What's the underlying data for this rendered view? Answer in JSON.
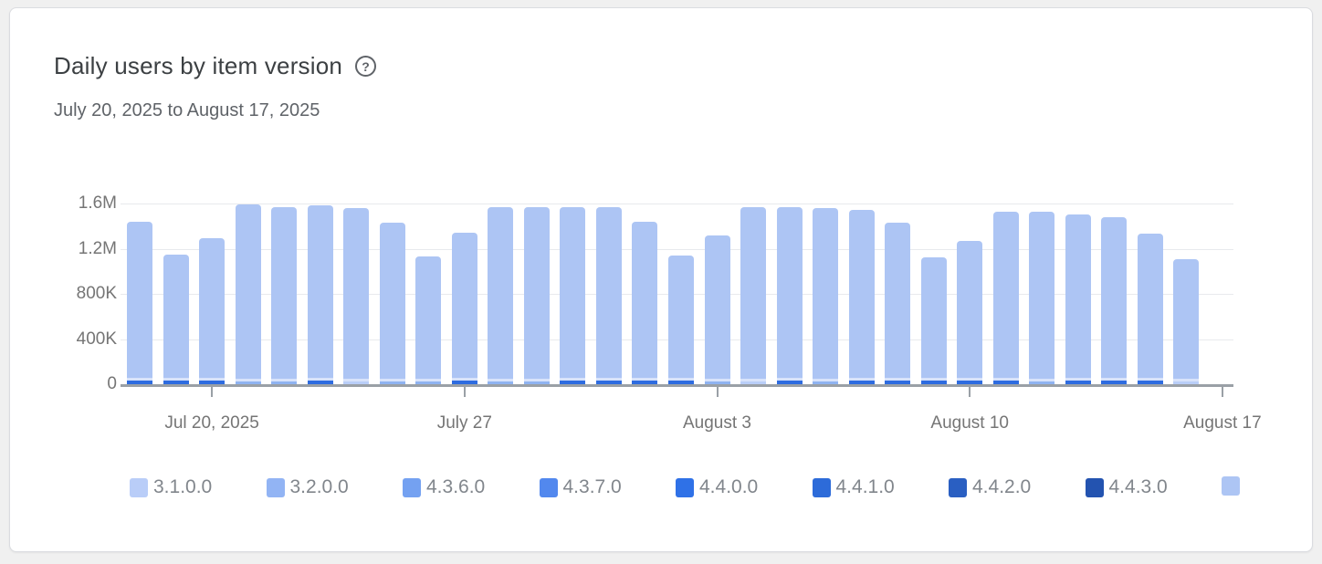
{
  "page": {
    "background_color": "#f0f0f0",
    "card_background": "#ffffff",
    "card_border_color": "#dadce0"
  },
  "header": {
    "title": "Daily users by item version",
    "help_glyph": "?",
    "date_range": "July 20, 2025 to August 17, 2025"
  },
  "colors": {
    "title_text": "#3c4043",
    "subtitle_text": "#5f6368",
    "axis_text": "#757575",
    "gridline": "#e8eaed",
    "axis_line": "#9aa0a6",
    "bar_main": "#adc5f4",
    "bar_pale_strip": "#d8e3fb",
    "bottom_dark": "#2e6ce0",
    "bottom_medium": "#8fb3f1",
    "bottom_pale": "#b9cef8"
  },
  "chart_data": {
    "type": "bar",
    "stacked": true,
    "title": "Daily users by item version",
    "subtitle": "July 20, 2025 to August 17, 2025",
    "ylabel": "",
    "xlabel": "",
    "ylim": [
      0,
      1600000
    ],
    "y_tick_labels": [
      "0",
      "400K",
      "800K",
      "1.2M",
      "1.6M"
    ],
    "grid": true,
    "x_tick_labels": [
      "Jul 20, 2025",
      "July 27",
      "August 3",
      "August 10",
      "August 17"
    ],
    "x_tick_slots": [
      2,
      9,
      16,
      23,
      30
    ],
    "num_slots": 31,
    "note": "Stacked daily-user bars; dominant segment is the light-periwinkle newest version (9th unlabeled legend entry); thin strips of older versions sit at the bottom of each bar. Totals estimated from gridlines.",
    "bars": [
      {
        "date": "Jul 18",
        "total_est": 1440000,
        "bottom_style": "dark",
        "bottom_users_est": 32000
      },
      {
        "date": "Jul 19",
        "total_est": 1150000,
        "bottom_style": "dark",
        "bottom_users_est": 32000
      },
      {
        "date": "Jul 20",
        "total_est": 1290000,
        "bottom_style": "dark",
        "bottom_users_est": 32000
      },
      {
        "date": "Jul 21",
        "total_est": 1590000,
        "bottom_style": "medium",
        "bottom_users_est": 24000
      },
      {
        "date": "Jul 22",
        "total_est": 1570000,
        "bottom_style": "medium",
        "bottom_users_est": 24000
      },
      {
        "date": "Jul 23",
        "total_est": 1580000,
        "bottom_style": "dark",
        "bottom_users_est": 32000
      },
      {
        "date": "Jul 24",
        "total_est": 1560000,
        "bottom_style": "pale",
        "bottom_users_est": 24000
      },
      {
        "date": "Jul 25",
        "total_est": 1430000,
        "bottom_style": "medium",
        "bottom_users_est": 24000
      },
      {
        "date": "Jul 26",
        "total_est": 1130000,
        "bottom_style": "medium",
        "bottom_users_est": 24000
      },
      {
        "date": "Jul 27",
        "total_est": 1340000,
        "bottom_style": "dark",
        "bottom_users_est": 32000
      },
      {
        "date": "Jul 28",
        "total_est": 1570000,
        "bottom_style": "medium",
        "bottom_users_est": 24000
      },
      {
        "date": "Jul 29",
        "total_est": 1570000,
        "bottom_style": "medium",
        "bottom_users_est": 24000
      },
      {
        "date": "Jul 30",
        "total_est": 1570000,
        "bottom_style": "dark",
        "bottom_users_est": 32000
      },
      {
        "date": "Jul 31",
        "total_est": 1570000,
        "bottom_style": "dark",
        "bottom_users_est": 32000
      },
      {
        "date": "Aug 1",
        "total_est": 1440000,
        "bottom_style": "dark",
        "bottom_users_est": 32000
      },
      {
        "date": "Aug 2",
        "total_est": 1140000,
        "bottom_style": "dark",
        "bottom_users_est": 32000
      },
      {
        "date": "Aug 3",
        "total_est": 1320000,
        "bottom_style": "medium",
        "bottom_users_est": 24000
      },
      {
        "date": "Aug 4",
        "total_est": 1570000,
        "bottom_style": "pale",
        "bottom_users_est": 24000
      },
      {
        "date": "Aug 5",
        "total_est": 1570000,
        "bottom_style": "dark",
        "bottom_users_est": 32000
      },
      {
        "date": "Aug 6",
        "total_est": 1560000,
        "bottom_style": "medium",
        "bottom_users_est": 24000
      },
      {
        "date": "Aug 7",
        "total_est": 1540000,
        "bottom_style": "dark",
        "bottom_users_est": 32000
      },
      {
        "date": "Aug 8",
        "total_est": 1430000,
        "bottom_style": "dark",
        "bottom_users_est": 32000
      },
      {
        "date": "Aug 9",
        "total_est": 1120000,
        "bottom_style": "dark",
        "bottom_users_est": 32000
      },
      {
        "date": "Aug 10",
        "total_est": 1270000,
        "bottom_style": "dark",
        "bottom_users_est": 32000
      },
      {
        "date": "Aug 11",
        "total_est": 1530000,
        "bottom_style": "dark",
        "bottom_users_est": 32000
      },
      {
        "date": "Aug 12",
        "total_est": 1530000,
        "bottom_style": "medium",
        "bottom_users_est": 24000
      },
      {
        "date": "Aug 13",
        "total_est": 1500000,
        "bottom_style": "dark",
        "bottom_users_est": 32000
      },
      {
        "date": "Aug 14",
        "total_est": 1480000,
        "bottom_style": "dark",
        "bottom_users_est": 32000
      },
      {
        "date": "Aug 15",
        "total_est": 1330000,
        "bottom_style": "dark",
        "bottom_users_est": 32000
      },
      {
        "date": "Aug 16",
        "total_est": 1110000,
        "bottom_style": "pale",
        "bottom_users_est": 24000
      }
    ],
    "legend_position": "bottom"
  },
  "legend": {
    "items": [
      {
        "label": "3.1.0.0",
        "color": "#b9cdf8"
      },
      {
        "label": "3.2.0.0",
        "color": "#92b4f4"
      },
      {
        "label": "4.3.6.0",
        "color": "#74a1f1"
      },
      {
        "label": "4.3.7.0",
        "color": "#5288ee"
      },
      {
        "label": "4.4.0.0",
        "color": "#2f71e7"
      },
      {
        "label": "4.4.1.0",
        "color": "#2d6bd9"
      },
      {
        "label": "4.4.2.0",
        "color": "#2a5fc2"
      },
      {
        "label": "4.4.3.0",
        "color": "#2353b0"
      },
      {
        "label": "",
        "color": "#adc5f4"
      }
    ]
  }
}
